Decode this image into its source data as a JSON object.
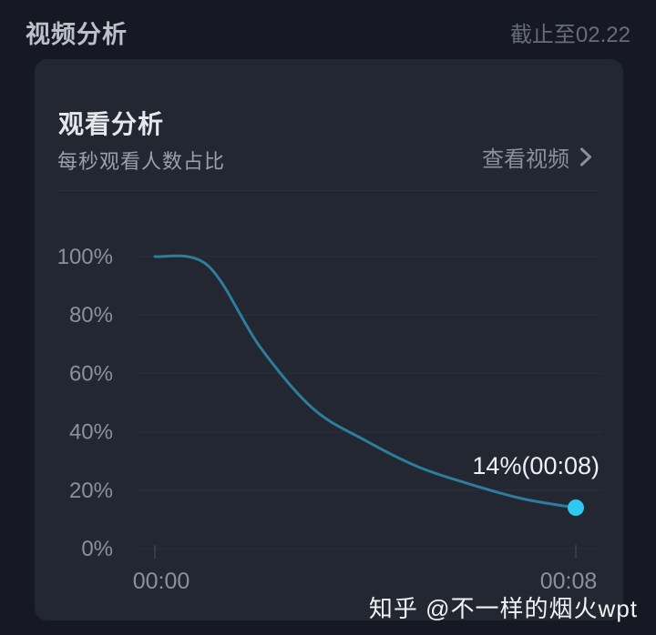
{
  "page": {
    "bg_color": "#161923",
    "header": {
      "title": "视频分析",
      "date_note": "截止至02.22"
    },
    "watermark": "知乎 @不一样的烟火wpt"
  },
  "card": {
    "bg_color": "#232732",
    "title": "观看分析",
    "link": {
      "label": "查看视频",
      "icon": "chevron-right-icon"
    },
    "subtitle": "每秒观看人数占比"
  },
  "chart_data": {
    "type": "line",
    "title": "每秒观看人数占比",
    "x_unit": "seconds (mm:ss)",
    "x_seconds": [
      0,
      1,
      2,
      3,
      4,
      5,
      6,
      7,
      8
    ],
    "values_pct": [
      100,
      97,
      69,
      48,
      37,
      28,
      22,
      17,
      14
    ],
    "ylim": [
      0,
      100
    ],
    "ytick_labels": [
      "0%",
      "20%",
      "40%",
      "60%",
      "80%",
      "100%"
    ],
    "xtick_labels": [
      "00:00",
      "00:08"
    ],
    "xtick_seconds": [
      0,
      8
    ],
    "endpoint_annotation": "14%(00:08)",
    "grid": true,
    "legend": "none",
    "line_color": "#2d7d9b",
    "endpoint_dot_color": "#2ec8f0",
    "axis_label_color": "#8b919c",
    "grid_color": "#2c313c",
    "tick_color": "#3d424d",
    "annotation_color": "#eef0f4"
  }
}
